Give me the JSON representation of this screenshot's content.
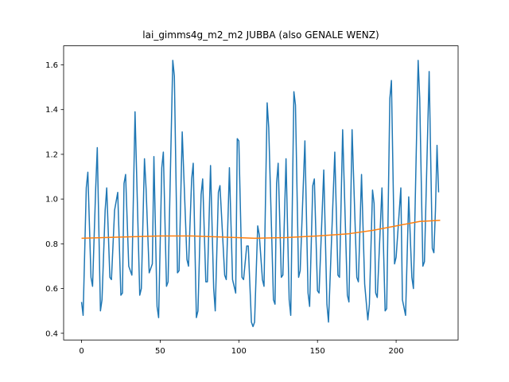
{
  "chart_data": {
    "type": "line",
    "title": "lai_gimms4g_m2_m2 JUBBA (also GENALE WENZ)",
    "xlim": [
      -11.4,
      239.4
    ],
    "xticks": [
      0,
      50,
      100,
      150,
      200
    ],
    "ylim": [
      0.37,
      1.685
    ],
    "yticks": [
      {
        "value": 0.4,
        "label": "0.4"
      },
      {
        "value": 0.6,
        "label": "0.6"
      },
      {
        "value": 0.8,
        "label": "0.8"
      },
      {
        "value": 1.0,
        "label": "1.0"
      },
      {
        "value": 1.2,
        "label": "1.2"
      },
      {
        "value": 1.4,
        "label": "1.4"
      },
      {
        "value": 1.6,
        "label": "1.6"
      }
    ],
    "series": [
      {
        "color": "#1f77b4",
        "x": [
          0,
          1,
          3,
          4,
          6,
          7,
          9,
          10,
          12,
          13,
          15,
          16,
          18,
          19,
          21,
          23,
          25,
          26,
          27,
          28,
          30,
          32,
          34,
          37,
          38,
          40,
          41,
          43,
          45,
          46,
          48,
          49,
          51,
          52,
          54,
          55,
          58,
          59,
          61,
          62,
          64,
          67,
          68,
          70,
          71,
          73,
          74,
          76,
          77,
          79,
          80,
          82,
          84,
          85,
          87,
          88,
          91,
          92,
          94,
          96,
          98,
          99,
          100,
          102,
          103,
          105,
          106,
          108,
          109,
          110,
          112,
          113,
          115,
          116,
          118,
          119,
          122,
          123,
          124,
          125,
          127,
          128,
          130,
          132,
          133,
          135,
          136,
          138,
          139,
          142,
          144,
          145,
          147,
          148,
          150,
          151,
          154,
          156,
          157,
          161,
          163,
          164,
          166,
          169,
          170,
          172,
          175,
          176,
          178,
          180,
          182,
          183,
          185,
          186,
          187,
          188,
          191,
          193,
          194,
          196,
          197,
          199,
          200,
          203,
          204,
          206,
          208,
          210,
          211,
          214,
          215,
          217,
          218,
          221,
          223,
          224,
          225,
          226,
          227
        ],
        "values": [
          0.54,
          0.48,
          1.05,
          1.12,
          0.65,
          0.61,
          1.05,
          1.23,
          0.5,
          0.55,
          0.95,
          1.05,
          0.65,
          0.64,
          0.95,
          1.03,
          0.57,
          0.58,
          1.07,
          1.11,
          0.7,
          0.66,
          1.39,
          0.57,
          0.6,
          1.18,
          1.05,
          0.67,
          0.71,
          1.19,
          0.52,
          0.47,
          1.14,
          1.21,
          0.61,
          0.63,
          1.62,
          1.55,
          0.67,
          0.68,
          1.3,
          0.73,
          0.7,
          1.09,
          1.16,
          0.47,
          0.5,
          1.02,
          1.09,
          0.63,
          0.63,
          1.15,
          0.6,
          0.5,
          1.03,
          1.06,
          0.66,
          0.64,
          1.14,
          0.64,
          0.58,
          1.27,
          1.26,
          0.65,
          0.64,
          0.79,
          0.79,
          0.45,
          0.43,
          0.45,
          0.88,
          0.84,
          0.64,
          0.61,
          1.43,
          1.32,
          0.55,
          0.53,
          1.07,
          1.16,
          0.65,
          0.66,
          1.18,
          0.55,
          0.48,
          1.48,
          1.42,
          0.65,
          0.68,
          1.26,
          0.58,
          0.52,
          1.06,
          1.09,
          0.59,
          0.58,
          1.13,
          0.53,
          0.45,
          1.21,
          0.66,
          0.65,
          1.31,
          0.57,
          0.54,
          1.31,
          0.65,
          0.63,
          1.11,
          0.62,
          0.46,
          0.53,
          1.04,
          0.98,
          0.58,
          0.56,
          1.05,
          0.5,
          0.51,
          1.45,
          1.53,
          0.71,
          0.74,
          1.05,
          0.55,
          0.48,
          1.01,
          0.65,
          0.6,
          1.62,
          1.45,
          0.7,
          0.72,
          1.57,
          0.78,
          0.76,
          0.95,
          1.24,
          1.03
        ]
      },
      {
        "color": "#ff7f0e",
        "x": [
          0,
          25,
          50,
          70,
          90,
          110,
          130,
          150,
          170,
          185,
          200,
          215,
          228
        ],
        "values": [
          0.825,
          0.83,
          0.835,
          0.835,
          0.83,
          0.825,
          0.828,
          0.835,
          0.845,
          0.86,
          0.88,
          0.9,
          0.905
        ]
      }
    ]
  }
}
